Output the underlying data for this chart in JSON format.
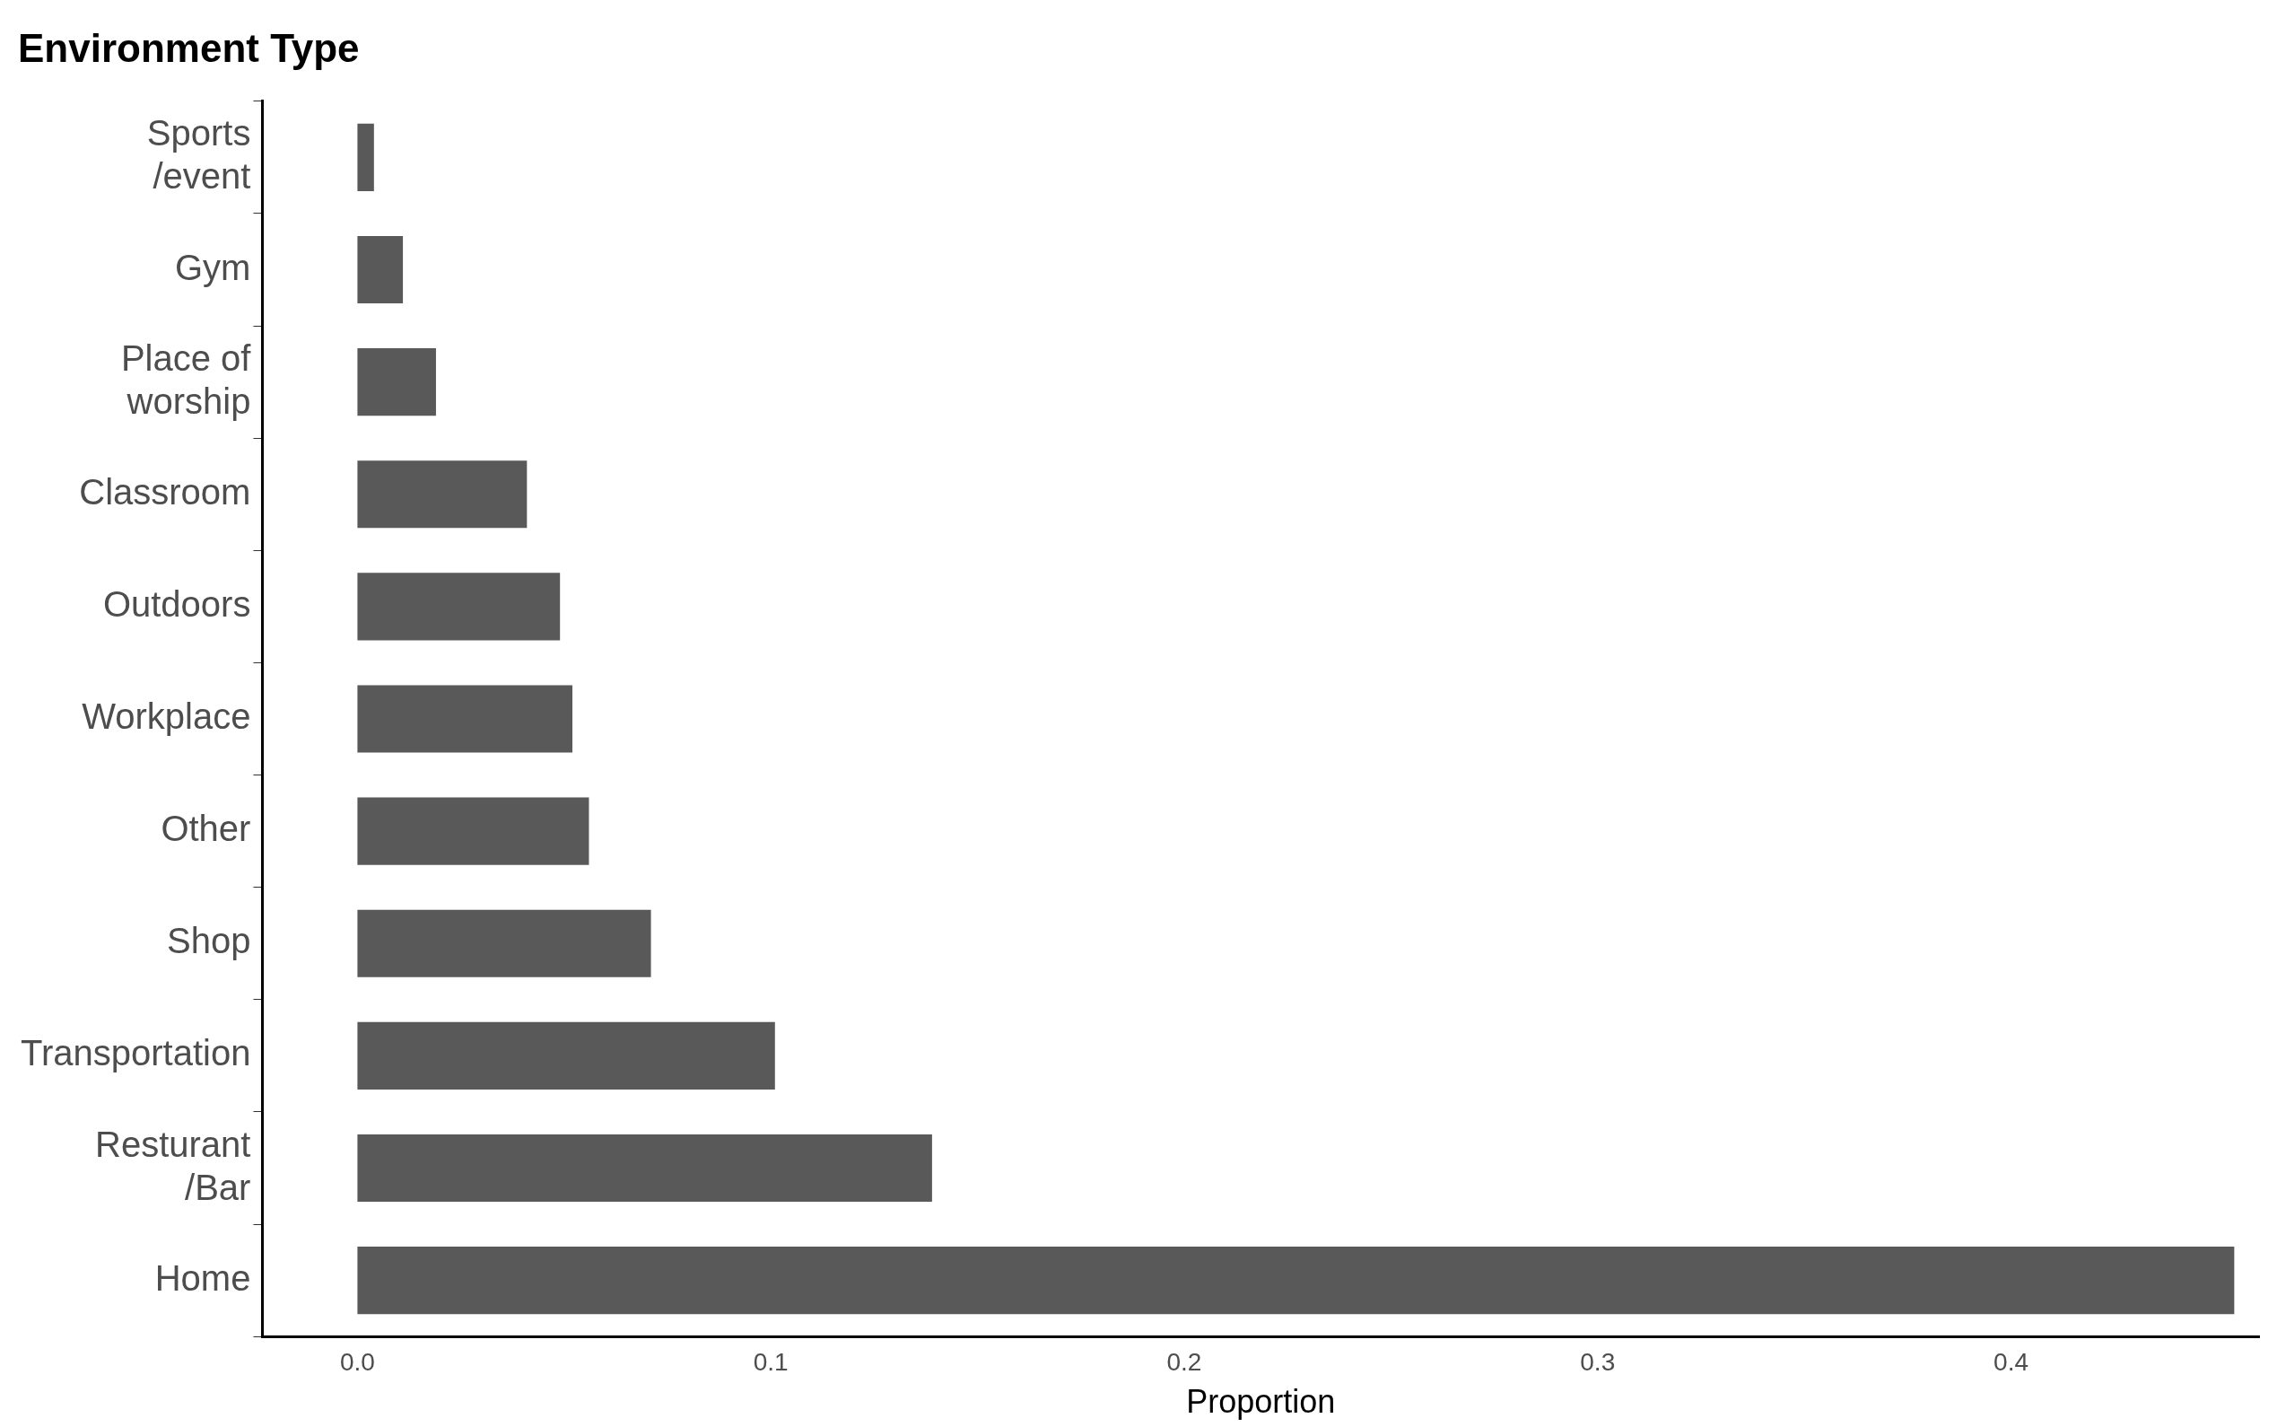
{
  "chart_data": {
    "type": "bar",
    "orientation": "horizontal",
    "title": "Environment Type",
    "xlabel": "Proportion",
    "categories": [
      "Sports\n/event",
      "Gym",
      "Place of\nworship",
      "Classroom",
      "Outdoors",
      "Workplace",
      "Other",
      "Shop",
      "Transportation",
      "Resturant\n/Bar",
      "Home"
    ],
    "values": [
      0.004,
      0.011,
      0.019,
      0.041,
      0.049,
      0.052,
      0.056,
      0.071,
      0.101,
      0.139,
      0.454
    ],
    "color": "#595959",
    "xlim": [
      -0.023,
      0.46
    ],
    "xticks": [
      {
        "value": 0,
        "label": "0.0"
      },
      0.1,
      0.2,
      0.3,
      0.4
    ],
    "grid": false,
    "legend": false
  }
}
